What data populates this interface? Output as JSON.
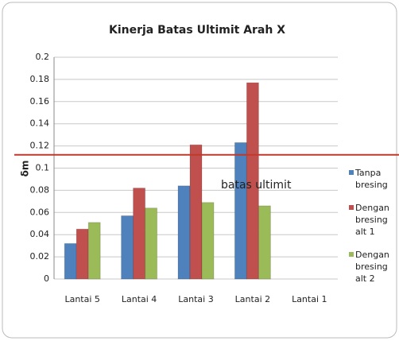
{
  "chart_data": {
    "type": "bar",
    "title": "Kinerja Batas Ultimit Arah X",
    "ylabel": "δm",
    "categories": [
      "Lantai 5",
      "Lantai 4",
      "Lantai 3",
      "Lantai 2",
      "Lantai 1"
    ],
    "series": [
      {
        "name": "Tanpa bresing",
        "color": "#4f81bd",
        "values": [
          0.032,
          0.057,
          0.084,
          0.123,
          null
        ]
      },
      {
        "name": "Dengan bresing alt 1",
        "color": "#c0504d",
        "values": [
          0.045,
          0.082,
          0.121,
          0.177,
          null
        ]
      },
      {
        "name": "Dengan bresing alt 2",
        "color": "#9bbb59",
        "values": [
          0.051,
          0.064,
          0.069,
          0.066,
          null
        ]
      }
    ],
    "reference_line": {
      "value": 0.112,
      "label": "batas ultimit",
      "color": "#c0392b"
    },
    "ylim": [
      0,
      0.2
    ],
    "yticks": [
      0,
      0.02,
      0.04,
      0.06,
      0.08,
      0.1,
      0.12,
      0.14,
      0.16,
      0.18,
      0.2
    ],
    "grid": true,
    "legend": "right"
  }
}
